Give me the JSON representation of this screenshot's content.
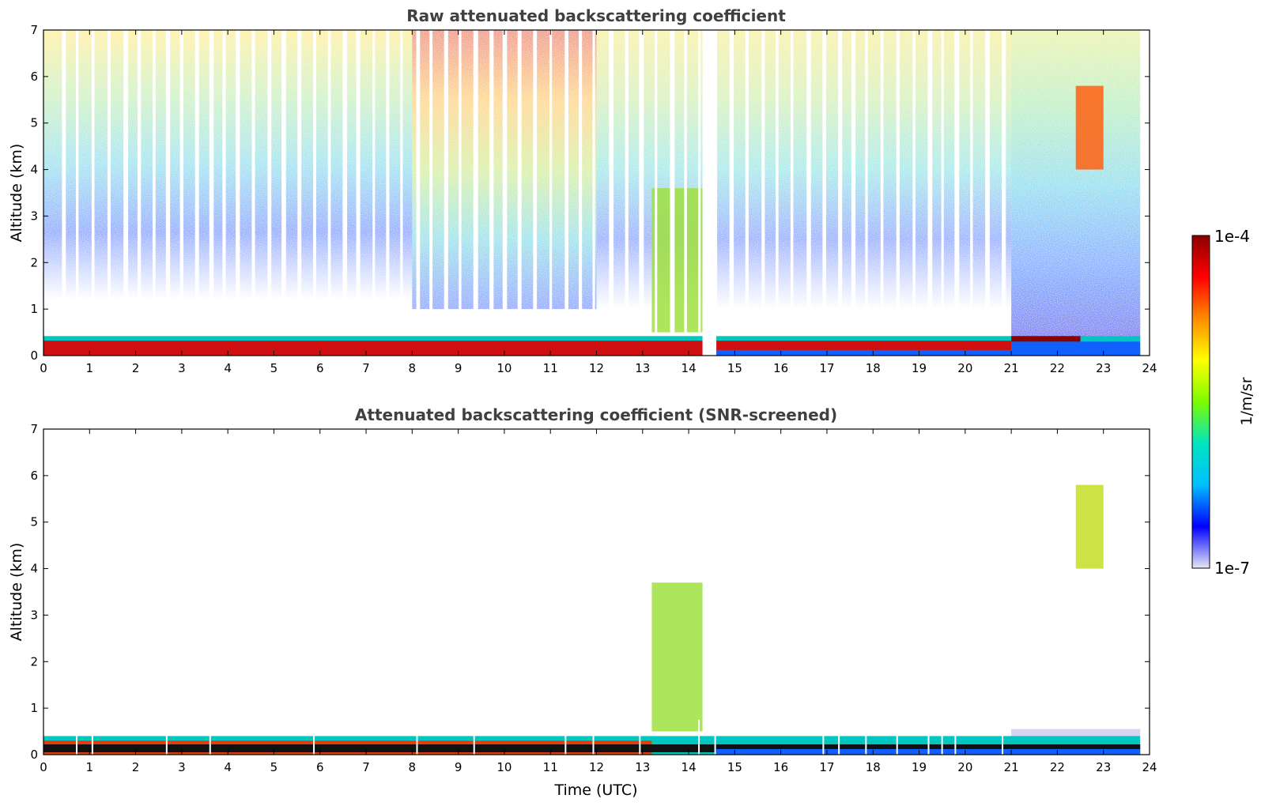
{
  "chart_data": [
    {
      "type": "heatmap",
      "title": "Raw attenuated backscattering coefficient",
      "xlabel": "",
      "ylabel": "Altitude (km)",
      "xlim": [
        0,
        24
      ],
      "ylim": [
        0,
        7
      ],
      "xticks": [
        "0",
        "1",
        "2",
        "3",
        "4",
        "5",
        "6",
        "7",
        "8",
        "9",
        "10",
        "11",
        "12",
        "13",
        "14",
        "15",
        "16",
        "17",
        "18",
        "19",
        "20",
        "21",
        "22",
        "23",
        "24"
      ],
      "yticks": [
        "0",
        "1",
        "2",
        "3",
        "4",
        "5",
        "6",
        "7"
      ],
      "features": [
        {
          "name": "boundary-layer",
          "x": [
            0,
            23.8
          ],
          "y": [
            0,
            0.5
          ]
        },
        {
          "name": "rising-layer",
          "x": [
            13.2,
            14.3
          ],
          "y": [
            0.5,
            3.6
          ]
        },
        {
          "name": "mid-cloud",
          "x": [
            22.4,
            23.0
          ],
          "y": [
            4.0,
            5.8
          ]
        },
        {
          "name": "data-gap",
          "x": [
            14.3,
            14.6
          ],
          "y": [
            0,
            7
          ]
        }
      ]
    },
    {
      "type": "heatmap",
      "title": "Attenuated backscattering coefficient (SNR-screened)",
      "xlabel": "Time (UTC)",
      "ylabel": "Altitude (km)",
      "xlim": [
        0,
        24
      ],
      "ylim": [
        0,
        7
      ],
      "xticks": [
        "0",
        "1",
        "2",
        "3",
        "4",
        "5",
        "6",
        "7",
        "8",
        "9",
        "10",
        "11",
        "12",
        "13",
        "14",
        "15",
        "16",
        "17",
        "18",
        "19",
        "20",
        "21",
        "22",
        "23",
        "24"
      ],
      "yticks": [
        "0",
        "1",
        "2",
        "3",
        "4",
        "5",
        "6",
        "7"
      ],
      "features": [
        {
          "name": "boundary-layer",
          "x": [
            0,
            23.8
          ],
          "y": [
            0,
            0.7
          ]
        },
        {
          "name": "rising-layer",
          "x": [
            13.2,
            14.3
          ],
          "y": [
            0.5,
            3.7
          ]
        },
        {
          "name": "mid-cloud",
          "x": [
            22.4,
            23.0
          ],
          "y": [
            4.0,
            5.8
          ]
        }
      ]
    }
  ],
  "colorbar": {
    "label": "1/m/sr",
    "max_label": "1e-4",
    "min_label": "1e-7",
    "colors": [
      "#e6e6f5",
      "#0000ff",
      "#00bfff",
      "#00e5c0",
      "#7cfc00",
      "#ffff00",
      "#ff8c00",
      "#ff0000",
      "#8b0000"
    ]
  }
}
